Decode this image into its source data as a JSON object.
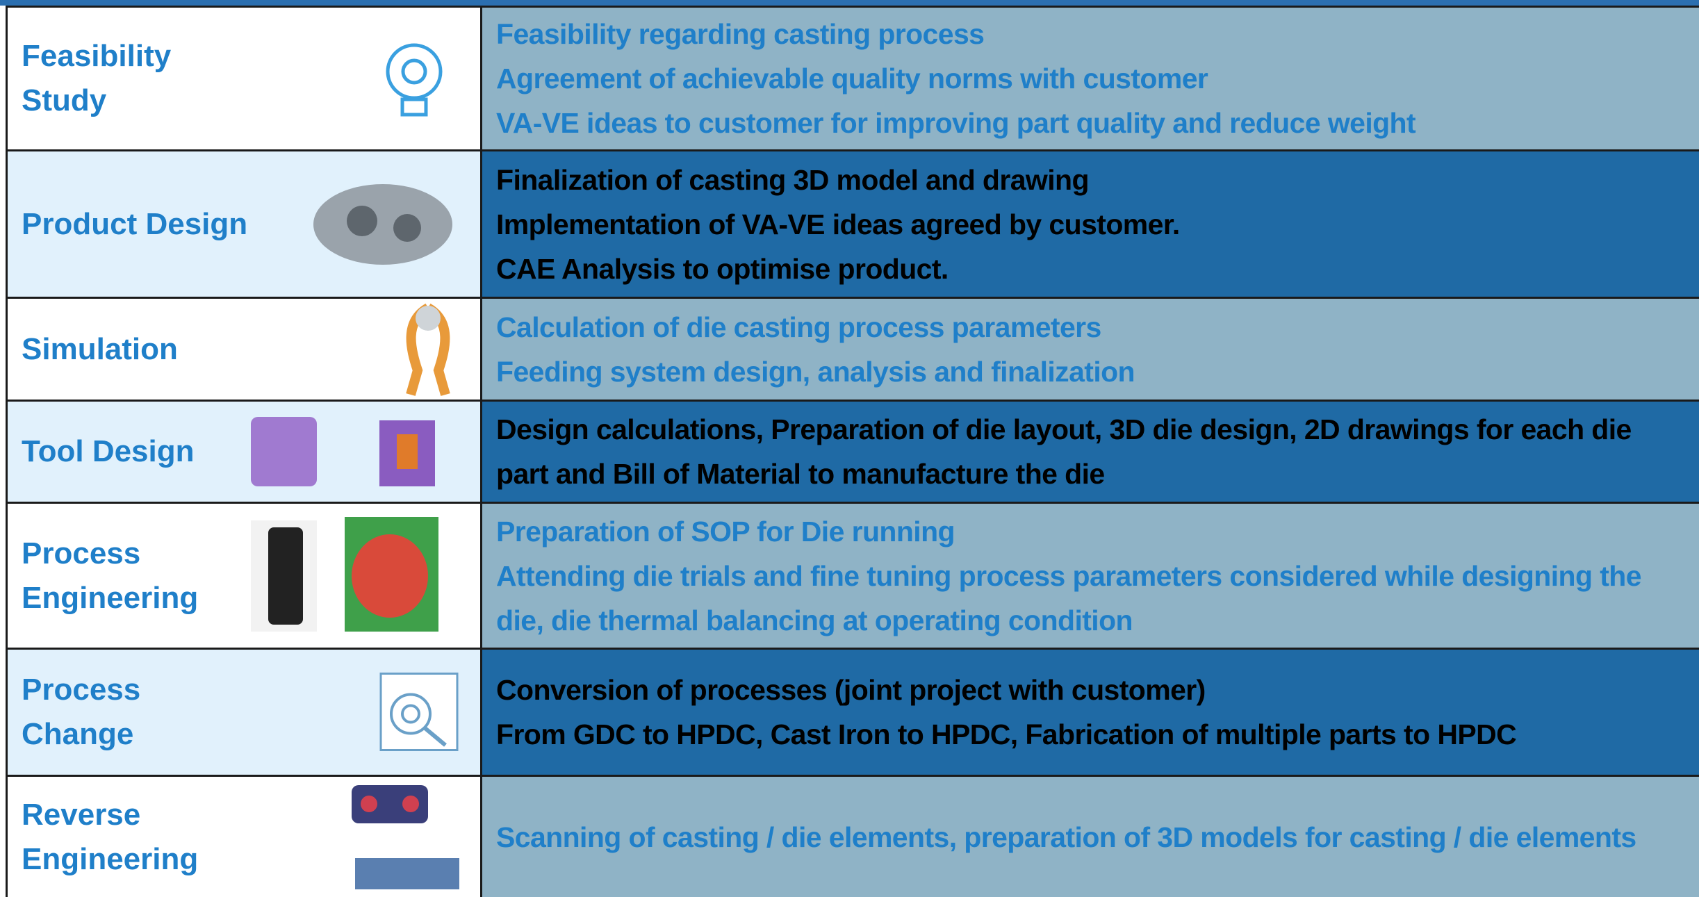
{
  "table": {
    "rows": [
      {
        "stage": "Feasibility Study",
        "details": [
          "Feasibility regarding casting process",
          "Agreement of achievable quality norms with customer",
          "VA-VE ideas to customer for improving part quality and reduce weight"
        ]
      },
      {
        "stage": "Product Design",
        "details": [
          "Finalization of casting 3D model and drawing",
          "Implementation of VA-VE ideas agreed by customer.",
          "CAE Analysis to optimise product."
        ]
      },
      {
        "stage": "Simulation",
        "details": [
          "Calculation of die casting process parameters",
          "Feeding system design, analysis and finalization"
        ]
      },
      {
        "stage": "Tool Design",
        "details": [
          "Design calculations, Preparation of die layout, 3D die design, 2D drawings for each die part and Bill of Material to manufacture the die"
        ]
      },
      {
        "stage": "Process Engineering",
        "details": [
          "Preparation of SOP for Die running",
          "Attending die trials and fine tuning process parameters considered while designing the die, die thermal balancing at operating condition"
        ]
      },
      {
        "stage": "Process Change",
        "details": [
          "Conversion of processes (joint project with customer)",
          "From GDC to HPDC, Cast Iron to HPDC, Fabrication of multiple parts to HPDC"
        ]
      },
      {
        "stage": "Reverse Engineering",
        "details": [
          "Scanning of casting / die elements, preparation of 3D models for casting / die elements"
        ]
      }
    ]
  }
}
